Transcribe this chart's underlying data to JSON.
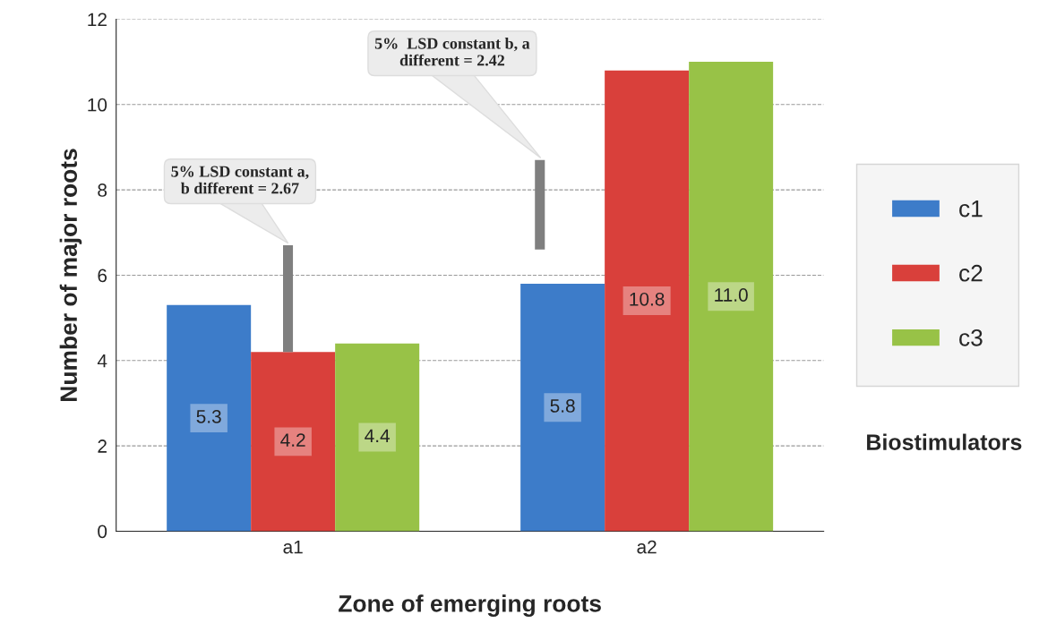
{
  "chart_data": {
    "type": "bar",
    "xlabel": "Zone of emerging roots",
    "ylabel": "Number of major roots",
    "legend_title": "Biostimulators",
    "categories": [
      "a1",
      "a2"
    ],
    "series": [
      {
        "name": "c1",
        "color": "#3d7cc9",
        "values": [
          5.3,
          5.8
        ]
      },
      {
        "name": "c2",
        "color": "#d9403b",
        "values": [
          4.2,
          10.8
        ]
      },
      {
        "name": "c3",
        "color": "#98c247",
        "values": [
          4.4,
          11.0
        ],
        "value_labels": [
          "4.4",
          "11.0"
        ]
      },
      {
        "type": "bar",
        "color": "#7f7f7f",
        "base": [
          4.2,
          6.6
        ],
        "values": [
          2.5,
          2.1
        ],
        "value_labels": [
          null,
          null
        ]
      }
    ],
    "annotations": [
      "5% LSD constant a,\nb different = 2.67",
      "5%  LSD constant b, a\ndifferent = 2.42"
    ],
    "ylim": [
      0,
      12
    ],
    "yticks": [
      0,
      2,
      4,
      6,
      8,
      10,
      12
    ],
    "grid": "y",
    "legend": "right",
    "data_labels": true
  }
}
